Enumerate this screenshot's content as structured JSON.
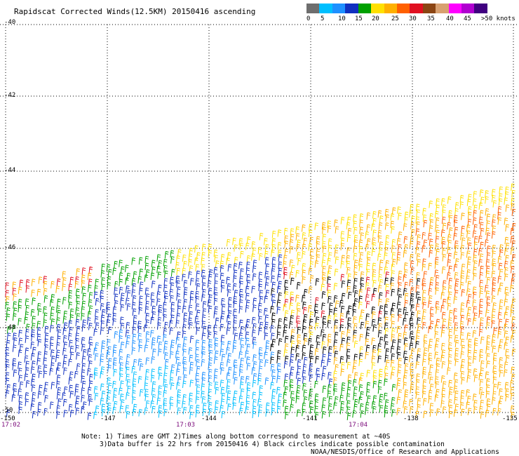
{
  "title": "Rapidscat Corrected Winds(12.5KM) 20150416 ascending",
  "colorbar": {
    "labels": [
      "0",
      "5",
      "10",
      "15",
      "20",
      "25",
      "30",
      "35",
      "40",
      "45",
      ">50 knots"
    ],
    "colors": [
      "#6e6e6e",
      "#00bfff",
      "#1e90ff",
      "#1030c0",
      "#00a000",
      "#ffe000",
      "#ffb000",
      "#ff6000",
      "#e01020",
      "#8b4513",
      "#d8a070",
      "#ff00ff",
      "#b000d0",
      "#400080"
    ]
  },
  "lat_labels": [
    "-40",
    "-42",
    "-44",
    "-46",
    "-48",
    "-50"
  ],
  "lon_labels": [
    "-150",
    "-147",
    "-144",
    "-141",
    "-138",
    "-135"
  ],
  "time_labels": [
    "17:02",
    "17:03",
    "17:04"
  ],
  "notes": {
    "line1": "Note: 1) Times are GMT 2)Times along bottom correspond to measurement at ~40S",
    "line2": "3)Data buffer is 22 hrs from 20150416 4) Black circles indicate possible contamination",
    "credit": "NOAA/NESDIS/Office of Research and Applications"
  },
  "map": {
    "lat_range": [
      -50,
      -40
    ],
    "lon_range": [
      -150,
      -135
    ],
    "grid": "dotted",
    "barb_colors": {
      "dark_blue": "#1030c0",
      "mid_blue": "#1e90ff",
      "cyan": "#00bfff",
      "green": "#00a000",
      "yellow": "#ffe000",
      "orange": "#ffb000",
      "dark_orange": "#ff6000",
      "red": "#e01020",
      "black": "#000000"
    }
  }
}
